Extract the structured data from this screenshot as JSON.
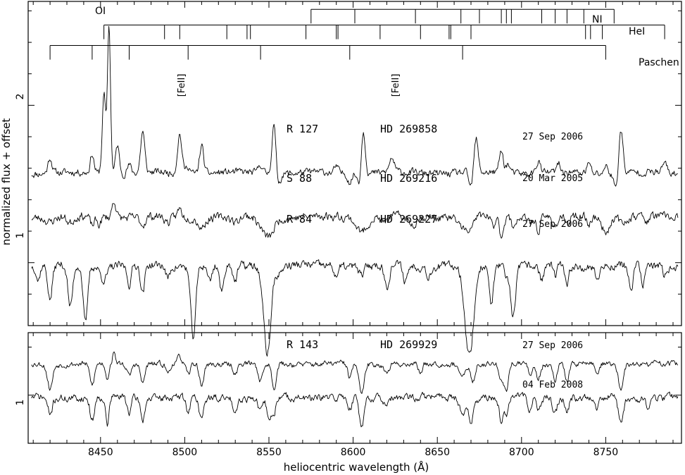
{
  "chart_data": {
    "type": "line",
    "x_axis": {
      "label": "heliocentric wavelength (Å)",
      "range": [
        8407,
        8795
      ],
      "ticks": [
        8450,
        8500,
        8550,
        8600,
        8650,
        8700,
        8750
      ],
      "tick_labels": [
        "8450",
        "8500",
        "8550",
        "8600",
        "8650",
        "8700",
        "8750"
      ]
    },
    "y_axis": {
      "label": "normalized flux + offset",
      "panels": [
        {
          "name": "top",
          "range": [
            0.6,
            2.66
          ],
          "ticks": [
            1,
            2
          ],
          "tick_labels": [
            "1",
            "2"
          ]
        },
        {
          "name": "bottom",
          "range": [
            0.8,
            1.26
          ],
          "ticks": [
            1
          ],
          "tick_labels": [
            "1"
          ]
        }
      ]
    },
    "line_lists": [
      {
        "label": "NI",
        "level": 2.52,
        "tick_len": 0.09,
        "lines": [
          8575,
          8601,
          8637,
          8664,
          8675,
          8688,
          8691,
          8694,
          8712,
          8720,
          8727,
          8737,
          8755
        ]
      },
      {
        "label": "HeI",
        "level": 2.42,
        "tick_len": 0.09,
        "lines": [
          8452,
          8488,
          8497,
          8525,
          8537,
          8539,
          8572,
          8590,
          8591,
          8616,
          8640,
          8657,
          8658,
          8670,
          8738,
          8741,
          8748,
          8785
        ]
      },
      {
        "label": "Paschen",
        "level": 2.29,
        "tick_len": 0.09,
        "lines": [
          8420,
          8445,
          8467,
          8502,
          8545,
          8598,
          8665,
          8750
        ]
      },
      {
        "label": "OI",
        "line": 8446
      },
      {
        "label": "[FeII]",
        "line": 8497
      },
      {
        "label": "[FeII]",
        "line": 8617
      }
    ],
    "annotations": [
      {
        "text": "R 127",
        "star": "HD 269858",
        "date": "27 Sep 2006"
      },
      {
        "text": "S 88",
        "star": "HD 269216",
        "date": "20 Mar 2005"
      },
      {
        "text": "R 84",
        "star": "HD 269227",
        "date": "27 Sep 2006"
      },
      {
        "text": "R 143",
        "star": "HD 269929",
        "date": "27 Sep 2006"
      },
      {
        "date": "04 Feb 2008"
      }
    ],
    "series": [
      {
        "panel": "top",
        "continuum": 1.57,
        "noise": 0.012,
        "seed": 11,
        "features": [
          [
            8420,
            0.1,
            1.2
          ],
          [
            8445,
            0.12,
            1.1
          ],
          [
            8452,
            0.5,
            1.0
          ],
          [
            8455,
            0.95,
            0.9
          ],
          [
            8460,
            0.18,
            1.1
          ],
          [
            8467,
            0.05,
            1.2
          ],
          [
            8475,
            0.26,
            1.2
          ],
          [
            8497,
            0.25,
            1.3
          ],
          [
            8502,
            0.05,
            1.2
          ],
          [
            8510,
            0.18,
            1.2
          ],
          [
            8545,
            0.06,
            1.2
          ],
          [
            8553,
            0.34,
            1.2
          ],
          [
            8555,
            -0.08,
            1.5
          ],
          [
            8590,
            0.04,
            1.0
          ],
          [
            8598,
            -0.05,
            1.2
          ],
          [
            8604,
            -0.08,
            1.2
          ],
          [
            8606,
            0.29,
            1.2
          ],
          [
            8623,
            0.09,
            1.4
          ],
          [
            8670,
            -0.1,
            1.2
          ],
          [
            8673,
            0.21,
            1.2
          ],
          [
            8688,
            0.14,
            1.2
          ],
          [
            8692,
            0.06,
            1.2
          ],
          [
            8710,
            0.08,
            1.2
          ],
          [
            8722,
            0.05,
            1.0
          ],
          [
            8740,
            0.06,
            1.2
          ],
          [
            8750,
            0.05,
            1.2
          ],
          [
            8756,
            -0.1,
            1.2
          ],
          [
            8759,
            0.28,
            1.2
          ],
          [
            8785,
            0.07,
            1.2
          ]
        ]
      },
      {
        "panel": "top",
        "continuum": 1.29,
        "noise": 0.014,
        "seed": 23,
        "features": [
          [
            8420,
            -0.03,
            2.0
          ],
          [
            8432,
            -0.04,
            2.0
          ],
          [
            8445,
            -0.06,
            1.2
          ],
          [
            8449,
            -0.05,
            1.2
          ],
          [
            8458,
            0.11,
            1.2
          ],
          [
            8475,
            -0.05,
            1.5
          ],
          [
            8490,
            -0.04,
            2.0
          ],
          [
            8497,
            0.05,
            1.2
          ],
          [
            8510,
            -0.06,
            2.0
          ],
          [
            8530,
            -0.04,
            2.0
          ],
          [
            8545,
            -0.04,
            2.5
          ],
          [
            8550,
            -0.12,
            3.0
          ],
          [
            8605,
            -0.09,
            3.0
          ],
          [
            8618,
            -0.04,
            1.5
          ],
          [
            8635,
            -0.05,
            2.5
          ],
          [
            8665,
            -0.06,
            2.5
          ],
          [
            8669,
            -0.1,
            1.5
          ],
          [
            8683,
            -0.07,
            1.2
          ],
          [
            8688,
            -0.12,
            1.2
          ],
          [
            8695,
            -0.06,
            1.2
          ],
          [
            8705,
            -0.04,
            1.2
          ],
          [
            8710,
            -0.08,
            1.2
          ],
          [
            8720,
            -0.06,
            1.5
          ],
          [
            8727,
            -0.07,
            1.2
          ],
          [
            8740,
            -0.04,
            1.2
          ],
          [
            8750,
            -0.09,
            2.0
          ],
          [
            8760,
            -0.05,
            1.5
          ],
          [
            8775,
            -0.03,
            1.5
          ]
        ]
      },
      {
        "panel": "top",
        "continuum": 0.98,
        "noise": 0.014,
        "seed": 37,
        "features": [
          [
            8413,
            -0.09,
            1.0
          ],
          [
            8420,
            -0.22,
            1.3
          ],
          [
            8432,
            -0.27,
            1.4
          ],
          [
            8441,
            -0.37,
            1.3
          ],
          [
            8452,
            -0.08,
            2.0
          ],
          [
            8467,
            -0.12,
            1.2
          ],
          [
            8475,
            -0.18,
            1.2
          ],
          [
            8490,
            -0.08,
            1.2
          ],
          [
            8505,
            -0.45,
            1.5
          ],
          [
            8515,
            -0.1,
            1.2
          ],
          [
            8522,
            -0.18,
            1.2
          ],
          [
            8530,
            -0.1,
            1.2
          ],
          [
            8549,
            -0.55,
            2.2
          ],
          [
            8556,
            -0.05,
            1.5
          ],
          [
            8590,
            -0.06,
            1.2
          ],
          [
            8605,
            -0.06,
            1.5
          ],
          [
            8620,
            -0.14,
            1.4
          ],
          [
            8631,
            -0.1,
            1.2
          ],
          [
            8645,
            -0.06,
            1.2
          ],
          [
            8669,
            -0.58,
            2.6
          ],
          [
            8682,
            -0.24,
            1.3
          ],
          [
            8691,
            -0.08,
            1.2
          ],
          [
            8695,
            -0.32,
            1.4
          ],
          [
            8712,
            -0.1,
            1.2
          ],
          [
            8720,
            -0.08,
            1.0
          ],
          [
            8727,
            -0.14,
            1.2
          ],
          [
            8745,
            -0.08,
            1.2
          ],
          [
            8765,
            -0.16,
            1.3
          ],
          [
            8772,
            -0.12,
            1.2
          ],
          [
            8785,
            -0.06,
            1.2
          ]
        ]
      },
      {
        "panel": "bottom",
        "continuum": 1.13,
        "noise": 0.006,
        "seed": 53,
        "features": [
          [
            8420,
            -0.1,
            1.5
          ],
          [
            8445,
            -0.09,
            1.4
          ],
          [
            8454,
            -0.06,
            1.0
          ],
          [
            8458,
            0.04,
            1.0
          ],
          [
            8467,
            -0.05,
            1.2
          ],
          [
            8475,
            -0.08,
            1.2
          ],
          [
            8490,
            -0.04,
            1.2
          ],
          [
            8497,
            0.03,
            1.0
          ],
          [
            8502,
            -0.05,
            1.2
          ],
          [
            8510,
            -0.09,
            1.3
          ],
          [
            8530,
            -0.04,
            1.2
          ],
          [
            8545,
            -0.07,
            1.5
          ],
          [
            8553,
            -0.1,
            1.3
          ],
          [
            8598,
            -0.06,
            1.2
          ],
          [
            8605,
            -0.13,
            1.5
          ],
          [
            8620,
            -0.04,
            1.2
          ],
          [
            8640,
            -0.04,
            1.2
          ],
          [
            8665,
            -0.06,
            1.5
          ],
          [
            8671,
            -0.08,
            1.2
          ],
          [
            8688,
            -0.07,
            1.2
          ],
          [
            8691,
            -0.12,
            1.2
          ],
          [
            8705,
            -0.04,
            1.2
          ],
          [
            8710,
            -0.06,
            1.2
          ],
          [
            8720,
            -0.06,
            1.2
          ],
          [
            8727,
            -0.07,
            1.2
          ],
          [
            8745,
            -0.04,
            1.2
          ],
          [
            8759,
            -0.1,
            1.5
          ]
        ]
      },
      {
        "panel": "bottom",
        "continuum": 0.99,
        "noise": 0.008,
        "seed": 71,
        "features": [
          [
            8420,
            -0.07,
            1.4
          ],
          [
            8445,
            -0.1,
            1.2
          ],
          [
            8454,
            -0.12,
            1.0
          ],
          [
            8467,
            -0.06,
            1.2
          ],
          [
            8475,
            -0.09,
            1.2
          ],
          [
            8502,
            -0.06,
            1.2
          ],
          [
            8510,
            -0.09,
            1.4
          ],
          [
            8530,
            -0.05,
            1.2
          ],
          [
            8545,
            -0.06,
            1.5
          ],
          [
            8550,
            -0.1,
            1.2
          ],
          [
            8553,
            -0.08,
            1.0
          ],
          [
            8598,
            -0.05,
            1.2
          ],
          [
            8605,
            -0.12,
            1.4
          ],
          [
            8620,
            -0.04,
            1.2
          ],
          [
            8665,
            -0.07,
            1.5
          ],
          [
            8670,
            -0.12,
            1.2
          ],
          [
            8688,
            -0.1,
            1.2
          ],
          [
            8691,
            -0.07,
            1.2
          ],
          [
            8705,
            -0.05,
            1.2
          ],
          [
            8710,
            -0.06,
            1.2
          ],
          [
            8720,
            -0.07,
            1.2
          ],
          [
            8727,
            -0.06,
            1.2
          ],
          [
            8745,
            -0.04,
            1.2
          ],
          [
            8759,
            -0.11,
            1.4
          ],
          [
            8775,
            -0.04,
            1.2
          ]
        ]
      }
    ]
  }
}
